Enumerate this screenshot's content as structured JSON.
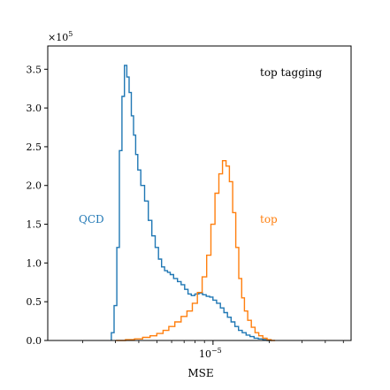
{
  "chart_data": {
    "type": "line",
    "drawstyle": "steps-mid",
    "xlabel": "MSE",
    "ylabel": "",
    "xscale": "log",
    "xlim": [
      1.3e-06,
      5.5e-05
    ],
    "ylim": [
      0,
      380000
    ],
    "x_ticks": [
      {
        "value": 1e-05,
        "base": "10",
        "exp": "−5"
      }
    ],
    "y_ticks": [
      {
        "value": 0,
        "label": "0.0"
      },
      {
        "value": 50000,
        "label": "0.5"
      },
      {
        "value": 100000,
        "label": "1.0"
      },
      {
        "value": 150000,
        "label": "1.5"
      },
      {
        "value": 200000,
        "label": "2.0"
      },
      {
        "value": 250000,
        "label": "2.5"
      },
      {
        "value": 300000,
        "label": "3.0"
      },
      {
        "value": 350000,
        "label": "3.5"
      }
    ],
    "y_offset_label": {
      "base": "×10",
      "exp": "5"
    },
    "annotations": {
      "title_inside": "top tagging",
      "qcd_label": "QCD",
      "top_label": "top"
    },
    "colors": {
      "qcd": "#1f77b4",
      "top": "#ff7f0e"
    },
    "grid": false,
    "series": [
      {
        "name": "QCD",
        "color": "#1f77b4",
        "x": [
          2.9e-06,
          3e-06,
          3.1e-06,
          3.2e-06,
          3.3e-06,
          3.4e-06,
          3.5e-06,
          3.6e-06,
          3.7e-06,
          3.8e-06,
          3.9e-06,
          4e-06,
          4.2e-06,
          4.4e-06,
          4.6e-06,
          4.8e-06,
          5e-06,
          5.2e-06,
          5.4e-06,
          5.6e-06,
          5.8e-06,
          6e-06,
          6.3e-06,
          6.6e-06,
          6.9e-06,
          7.2e-06,
          7.5e-06,
          7.8e-06,
          8.2e-06,
          8.6e-06,
          9e-06,
          9.4e-06,
          9.8e-06,
          1.02e-05,
          1.07e-05,
          1.12e-05,
          1.17e-05,
          1.22e-05,
          1.28e-05,
          1.34e-05,
          1.4e-05,
          1.47e-05,
          1.54e-05,
          1.62e-05,
          1.7e-05,
          1.8e-05,
          1.9e-05,
          2e-05
        ],
        "y": [
          10000,
          45000,
          120000,
          245000,
          315000,
          355000,
          340000,
          320000,
          290000,
          265000,
          240000,
          220000,
          200000,
          180000,
          155000,
          135000,
          120000,
          105000,
          95000,
          90000,
          88000,
          85000,
          80000,
          76000,
          72000,
          66000,
          60000,
          58000,
          60000,
          61000,
          59000,
          57000,
          56000,
          52000,
          48000,
          42000,
          36000,
          30000,
          24000,
          18000,
          13000,
          10000,
          7000,
          5000,
          3000,
          2000,
          1000,
          0
        ]
      },
      {
        "name": "top",
        "color": "#ff7f0e",
        "x": [
          3.2e-06,
          3.6e-06,
          4e-06,
          4.4e-06,
          4.8e-06,
          5.2e-06,
          5.6e-06,
          6e-06,
          6.5e-06,
          7e-06,
          7.5e-06,
          8e-06,
          8.5e-06,
          9e-06,
          9.5e-06,
          1e-05,
          1.05e-05,
          1.1e-05,
          1.15e-05,
          1.2e-05,
          1.25e-05,
          1.3e-05,
          1.35e-05,
          1.4e-05,
          1.45e-05,
          1.5e-05,
          1.57e-05,
          1.64e-05,
          1.72e-05,
          1.8e-05,
          1.9e-05,
          2e-05,
          2.1e-05
        ],
        "y": [
          0,
          1000,
          2000,
          4000,
          6000,
          9000,
          13000,
          18000,
          24000,
          31000,
          38000,
          48000,
          62000,
          82000,
          110000,
          150000,
          190000,
          215000,
          232000,
          225000,
          205000,
          165000,
          120000,
          80000,
          55000,
          38000,
          26000,
          17000,
          10000,
          6000,
          3000,
          1000,
          0
        ]
      }
    ]
  }
}
